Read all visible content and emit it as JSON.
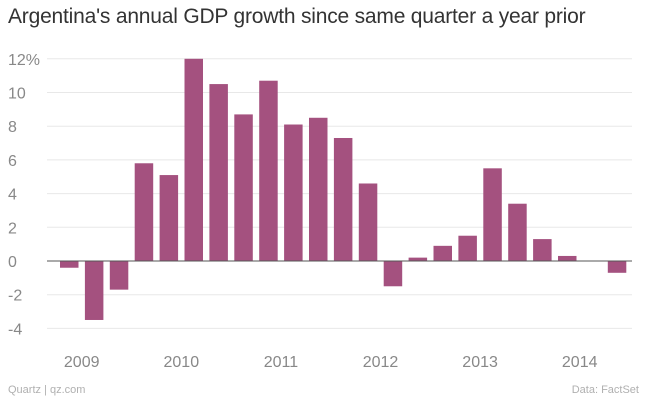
{
  "chart_data": {
    "type": "bar",
    "title": "Argentina's annual GDP growth since same quarter a year prior",
    "xlabel": "",
    "ylabel": "",
    "ylim": [
      -4.5,
      12.5
    ],
    "yticks": [
      -4,
      -2,
      0,
      2,
      4,
      6,
      8,
      10,
      12
    ],
    "ytick_labels": [
      "-4",
      "-2",
      "0",
      "2",
      "4",
      "6",
      "8",
      "10",
      "12%"
    ],
    "xticks": [
      "2009",
      "2010",
      "2011",
      "2012",
      "2013",
      "2014"
    ],
    "bar_color": "#a4517f",
    "grid": true,
    "categories": [
      "2009 Q1",
      "2009 Q2",
      "2009 Q3",
      "2009 Q4",
      "2010 Q1",
      "2010 Q2",
      "2010 Q3",
      "2010 Q4",
      "2011 Q1",
      "2011 Q2",
      "2011 Q3",
      "2011 Q4",
      "2012 Q1",
      "2012 Q2",
      "2012 Q3",
      "2012 Q4",
      "2013 Q1",
      "2013 Q2",
      "2013 Q3",
      "2013 Q4",
      "2014 Q1",
      "2014 Q2",
      "2014 Q3"
    ],
    "values": [
      -0.4,
      -3.5,
      -1.7,
      5.8,
      5.1,
      12.0,
      10.5,
      8.7,
      10.7,
      8.1,
      8.5,
      7.3,
      4.6,
      -1.5,
      0.2,
      0.9,
      1.5,
      5.5,
      3.4,
      1.3,
      0.3,
      0.0,
      -0.7
    ]
  },
  "footer": {
    "source_left": "Quartz | qz.com",
    "source_right": "Data: FactSet"
  }
}
